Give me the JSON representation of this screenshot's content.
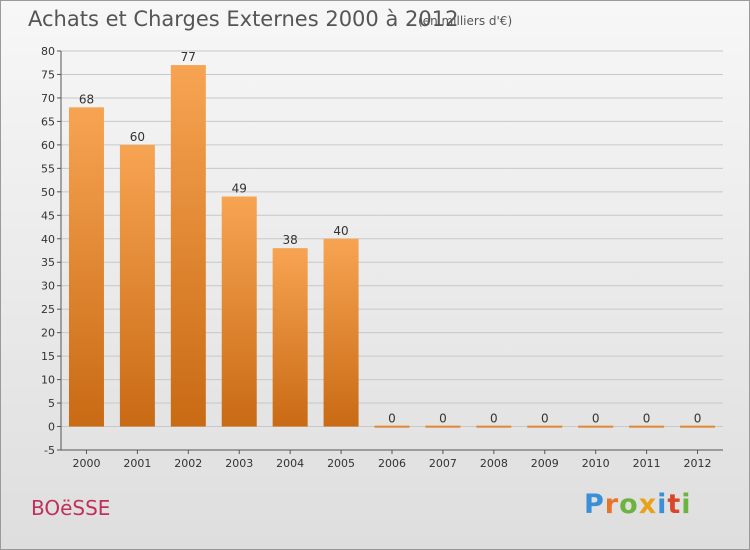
{
  "chart_data": {
    "type": "bar",
    "title": "Achats et Charges Externes 2000 à 2012",
    "subtitle": "(en milliers d'€)",
    "categories": [
      "2000",
      "2001",
      "2002",
      "2003",
      "2004",
      "2005",
      "2006",
      "2007",
      "2008",
      "2009",
      "2010",
      "2011",
      "2012"
    ],
    "values": [
      68,
      60,
      77,
      49,
      38,
      40,
      0,
      0,
      0,
      0,
      0,
      0,
      0
    ],
    "ylim": [
      -5,
      80
    ],
    "yticks": [
      -5,
      0,
      5,
      10,
      15,
      20,
      25,
      30,
      35,
      40,
      45,
      50,
      55,
      60,
      65,
      70,
      75,
      80
    ],
    "grid": true,
    "bar_color_top": "#f7a452",
    "bar_color_bottom": "#c96a14"
  },
  "commune": "BOëSSE",
  "logo": {
    "letters": [
      "P",
      "r",
      "o",
      "x",
      "i",
      "t",
      "i"
    ],
    "colors": [
      "#3a8fd8",
      "#e8732a",
      "#6cb33f",
      "#e8a21a",
      "#3a8fd8",
      "#d9472b",
      "#6cb33f"
    ]
  }
}
